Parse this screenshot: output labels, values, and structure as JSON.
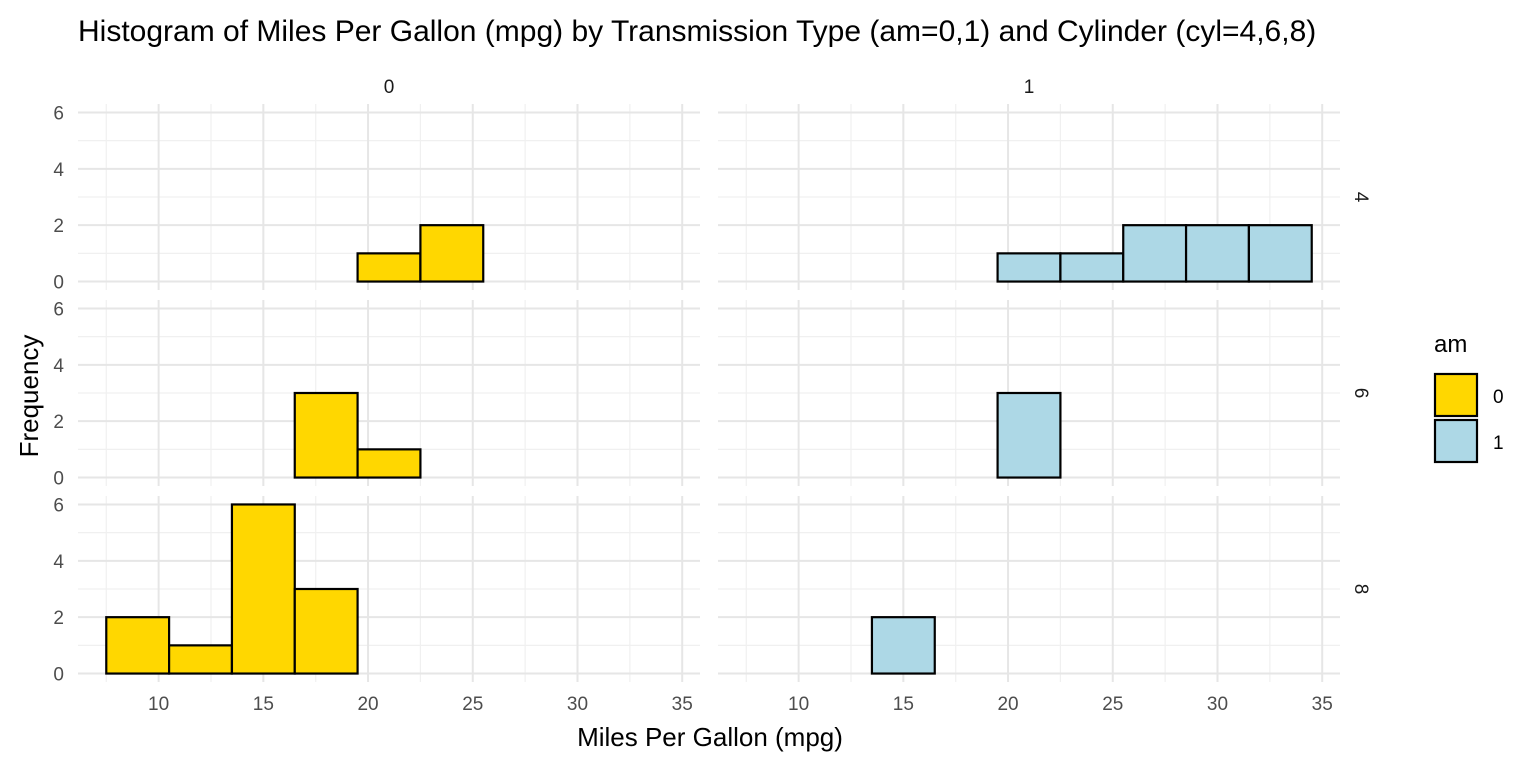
{
  "chart_data": {
    "type": "bar",
    "subtype": "faceted-histogram",
    "title": "Histogram of Miles Per Gallon (mpg) by Transmission Type (am=0,1) and Cylinder (cyl=4,6,8)",
    "xlabel": "Miles Per Gallon (mpg)",
    "ylabel": "Frequency",
    "xlim": [
      6.15,
      35.85
    ],
    "ylim": [
      -0.3,
      6.3
    ],
    "x_ticks": [
      10,
      15,
      20,
      25,
      30,
      35
    ],
    "y_ticks": [
      0,
      2,
      4,
      6
    ],
    "bin_width": 3,
    "bin_edges": [
      7.5,
      10.5,
      13.5,
      16.5,
      19.5,
      22.5,
      25.5,
      28.5,
      31.5,
      34.5
    ],
    "grid": true,
    "facet_columns": [
      "0",
      "1"
    ],
    "facet_rows": [
      "4",
      "6",
      "8"
    ],
    "legend": {
      "title": "am",
      "position": "right",
      "entries": [
        {
          "label": "0",
          "color": "#FFD700"
        },
        {
          "label": "1",
          "color": "#ADD8E6"
        }
      ]
    },
    "panels": [
      {
        "am": "0",
        "cyl": "4",
        "color": "#FFD700",
        "counts": [
          0,
          0,
          0,
          0,
          1,
          2,
          0,
          0,
          0
        ]
      },
      {
        "am": "1",
        "cyl": "4",
        "color": "#ADD8E6",
        "counts": [
          0,
          0,
          0,
          0,
          1,
          1,
          2,
          2,
          2
        ]
      },
      {
        "am": "0",
        "cyl": "6",
        "color": "#FFD700",
        "counts": [
          0,
          0,
          0,
          3,
          1,
          0,
          0,
          0,
          0
        ]
      },
      {
        "am": "1",
        "cyl": "6",
        "color": "#ADD8E6",
        "counts": [
          0,
          0,
          0,
          0,
          3,
          0,
          0,
          0,
          0
        ]
      },
      {
        "am": "0",
        "cyl": "8",
        "color": "#FFD700",
        "counts": [
          2,
          1,
          6,
          3,
          0,
          0,
          0,
          0,
          0
        ]
      },
      {
        "am": "1",
        "cyl": "8",
        "color": "#ADD8E6",
        "counts": [
          0,
          0,
          2,
          0,
          0,
          0,
          0,
          0,
          0
        ]
      }
    ]
  }
}
